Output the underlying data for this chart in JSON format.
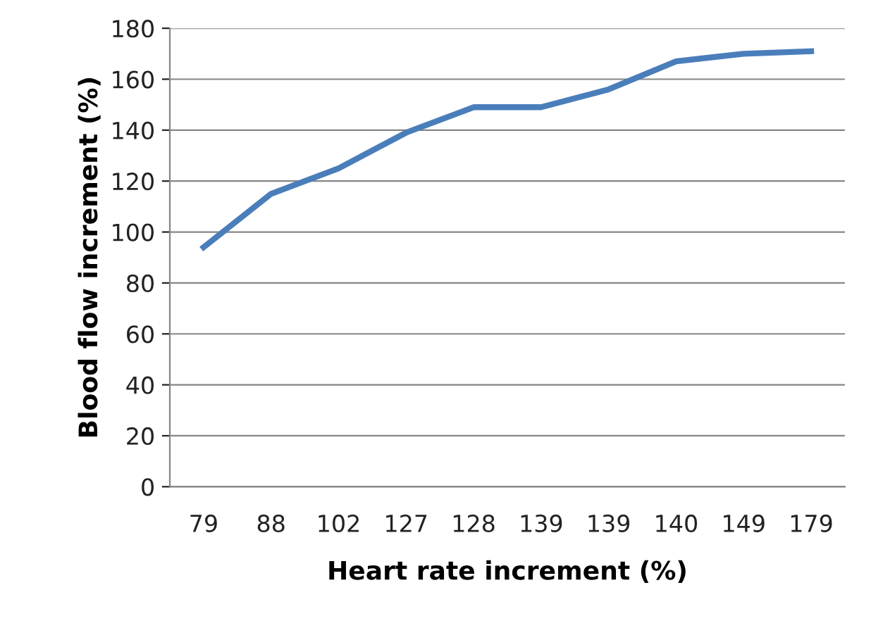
{
  "chart_data": {
    "type": "line",
    "xlabel": "Heart rate increment (%)",
    "ylabel": "Blood flow increment (%)",
    "categories": [
      "79",
      "88",
      "102",
      "127",
      "128",
      "139",
      "139",
      "140",
      "149",
      "179"
    ],
    "series": [
      {
        "color": "#4a7ebb",
        "values": [
          94,
          115,
          125,
          139,
          149,
          149,
          156,
          167,
          170,
          171
        ]
      }
    ],
    "ylim": [
      0,
      180
    ],
    "yticks": [
      0,
      20,
      40,
      60,
      80,
      100,
      120,
      140,
      160,
      180
    ],
    "grid": "y",
    "marker": "none",
    "line_style": "solid"
  }
}
